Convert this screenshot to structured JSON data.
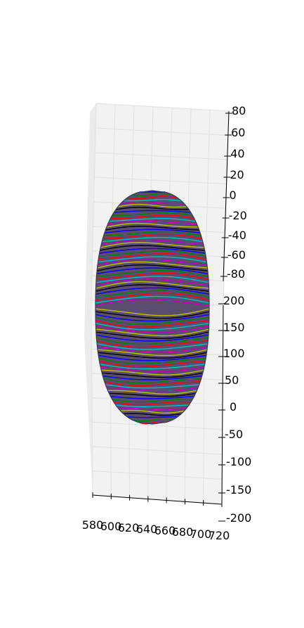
{
  "chart_data": {
    "type": "3d-surface-contours",
    "title": "",
    "x_axis": {
      "range": [
        580,
        720
      ],
      "ticks": [
        580,
        600,
        620,
        640,
        660,
        680,
        700,
        720
      ],
      "tick_labels": [
        "580",
        "600",
        "620",
        "640",
        "660",
        "680",
        "700",
        "720"
      ]
    },
    "y_axis": {
      "range": [
        -200,
        200
      ],
      "ticks": [
        -200,
        -150,
        -100,
        -50,
        0,
        50,
        100,
        150,
        200
      ],
      "tick_labels": [
        "200",
        "150",
        "100",
        "50",
        "0",
        "50",
        "100",
        "150",
        "200"
      ]
    },
    "z_axis": {
      "range": [
        -80,
        80
      ],
      "ticks": [
        -80,
        -60,
        -40,
        -20,
        0,
        20,
        40,
        60,
        80
      ],
      "tick_labels": [
        "80",
        "60",
        "40",
        "20",
        "0",
        "20",
        "40",
        "60",
        "80"
      ]
    },
    "grid": true,
    "surface": {
      "shape": "closed ellipsoid-like shell",
      "x_center": 650,
      "y_extent": [
        -130,
        130
      ],
      "contour_line_count": 80,
      "edge_color": "#3a3a5a"
    },
    "line_colors": [
      "#0000ff",
      "#008000",
      "#ff0000",
      "#00bfbf",
      "#bf00bf",
      "#bfbf00",
      "#000000"
    ]
  }
}
